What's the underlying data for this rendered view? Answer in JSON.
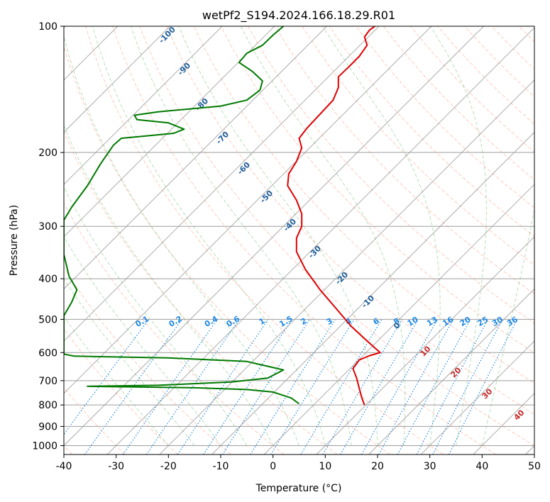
{
  "chart_data": {
    "type": "line",
    "title": "wetPf2_S194.2024.166.18.29.R01",
    "xlabel": "Temperature (°C)",
    "ylabel": "Pressure (hPa)",
    "xlim": [
      -40,
      50
    ],
    "ylim": [
      1050,
      100
    ],
    "y_scale": "log",
    "x_ticks": [
      "-40",
      "-30",
      "-20",
      "-10",
      "0",
      "10",
      "20",
      "30",
      "40",
      "50"
    ],
    "y_ticks": [
      {
        "value": 100,
        "label": "100"
      },
      {
        "value": 200,
        "label": "200"
      },
      {
        "value": 300,
        "label": "300"
      },
      {
        "value": 400,
        "label": "400"
      },
      {
        "value": 500,
        "label": "500"
      },
      {
        "value": 600,
        "label": "600"
      },
      {
        "value": 700,
        "label": "700"
      },
      {
        "value": 800,
        "label": "800"
      },
      {
        "value": 900,
        "label": "900"
      },
      {
        "value": 1000,
        "label": "1000"
      }
    ],
    "grid": true,
    "series": [
      {
        "key": "temperature",
        "color": "#e00000",
        "points": [
          [
            17.5,
            800
          ],
          [
            17,
            770
          ],
          [
            16.5,
            730
          ],
          [
            16,
            690
          ],
          [
            15.3,
            655
          ],
          [
            16.5,
            625
          ],
          [
            18.5,
            610
          ],
          [
            20.5,
            600
          ],
          [
            19.5,
            585
          ],
          [
            17.8,
            560
          ],
          [
            15,
            520
          ],
          [
            12,
            470
          ],
          [
            9,
            425
          ],
          [
            6.2,
            380
          ],
          [
            4.5,
            345
          ],
          [
            4.5,
            320
          ],
          [
            5.5,
            300
          ],
          [
            5.5,
            280
          ],
          [
            4.5,
            260
          ],
          [
            2.8,
            240
          ],
          [
            3,
            225
          ],
          [
            4.5,
            210
          ],
          [
            5.5,
            195
          ],
          [
            5,
            185
          ],
          [
            6.5,
            175
          ],
          [
            9,
            162
          ],
          [
            11.5,
            150
          ],
          [
            12.5,
            140
          ],
          [
            12.5,
            132
          ],
          [
            14.5,
            125
          ],
          [
            16.5,
            118
          ],
          [
            18,
            111
          ],
          [
            17.5,
            106
          ],
          [
            18.5,
            102
          ],
          [
            19.5,
            100
          ]
        ]
      },
      {
        "key": "dewpoint",
        "color": "#007a00",
        "points": [
          [
            5,
            795
          ],
          [
            3.5,
            770
          ],
          [
            0,
            745
          ],
          [
            -5,
            735
          ],
          [
            -15,
            728
          ],
          [
            -35.5,
            722
          ],
          [
            -22,
            718
          ],
          [
            -8,
            705
          ],
          [
            -1,
            690
          ],
          [
            2,
            660
          ],
          [
            -5,
            630
          ],
          [
            -20,
            618
          ],
          [
            -38,
            612
          ],
          [
            -40,
            605
          ],
          [
            -40,
            490
          ],
          [
            -38.5,
            455
          ],
          [
            -37.5,
            425
          ],
          [
            -39,
            395
          ],
          [
            -40,
            350
          ],
          [
            -40,
            290
          ],
          [
            -38.5,
            270
          ],
          [
            -35.5,
            240
          ],
          [
            -33,
            213
          ],
          [
            -30.5,
            192
          ],
          [
            -29,
            185
          ],
          [
            -25,
            183
          ],
          [
            -19,
            180
          ],
          [
            -17,
            176
          ],
          [
            -20,
            170
          ],
          [
            -26,
            167
          ],
          [
            -26.5,
            163
          ],
          [
            -22,
            160
          ],
          [
            -10,
            155
          ],
          [
            -5,
            150
          ],
          [
            -2.5,
            142
          ],
          [
            -2,
            135
          ],
          [
            -4,
            128
          ],
          [
            -6.5,
            122
          ],
          [
            -5,
            116
          ],
          [
            -2,
            111
          ],
          [
            0,
            105
          ],
          [
            2,
            100
          ]
        ]
      }
    ],
    "mixing_ratio_labels": [
      "0.1",
      "0.2",
      "0.4",
      "0.6",
      "1",
      "1.5",
      "2",
      "3",
      "4",
      "6",
      "8",
      "10",
      "13",
      "16",
      "20",
      "25",
      "30",
      "36"
    ],
    "dry_adiabat_labels": [
      "-100",
      "-90",
      "-80",
      "-70",
      "-60",
      "-50",
      "-40",
      "-30",
      "-20",
      "-10",
      "0"
    ],
    "moist_adiabat_labels": [
      "10",
      "20",
      "30",
      "40"
    ]
  }
}
